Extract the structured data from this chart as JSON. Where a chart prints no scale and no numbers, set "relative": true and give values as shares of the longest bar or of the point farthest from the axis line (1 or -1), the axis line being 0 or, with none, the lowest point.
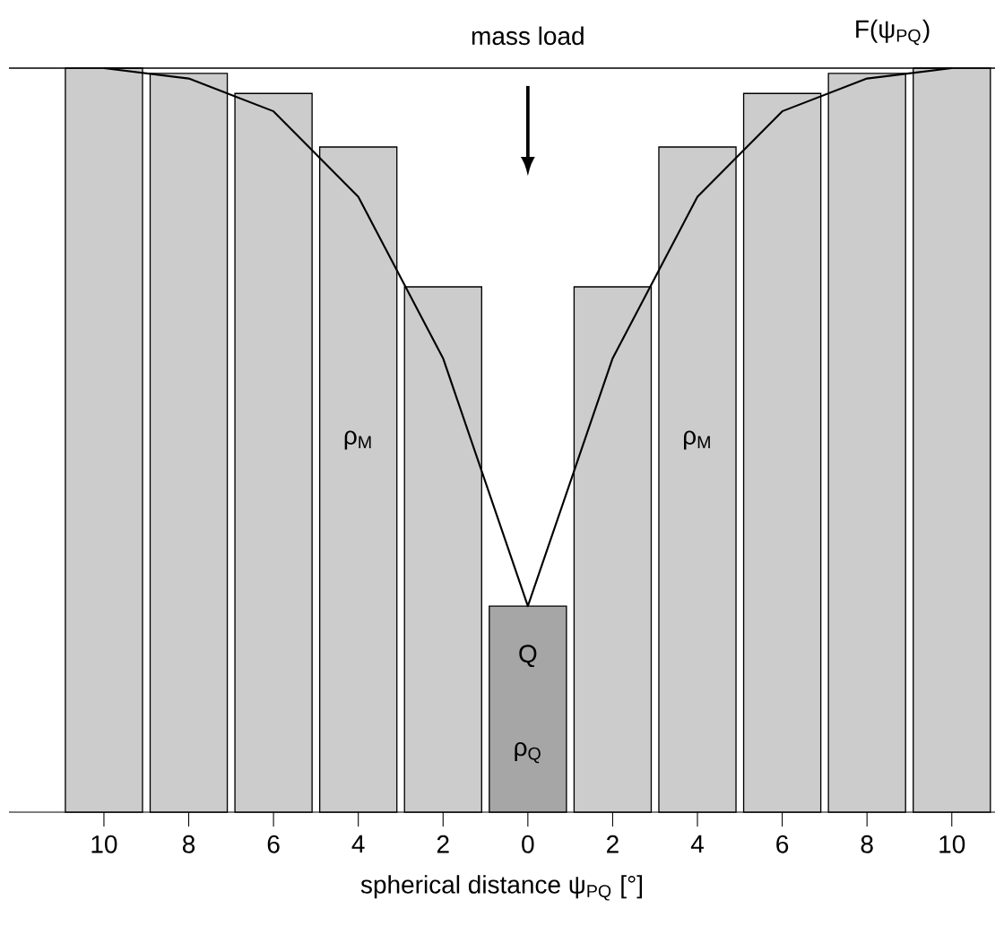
{
  "chart_data": {
    "type": "bar",
    "relative": true,
    "categories": [
      "10",
      "8",
      "6",
      "4",
      "2",
      "0",
      "2",
      "4",
      "6",
      "8",
      "10"
    ],
    "xlabel": "spherical distance ψ$_{PQ}$ [°]",
    "series": [
      {
        "values": [
          1,
          0.993,
          0.966,
          0.894,
          0.706,
          0.277,
          0.706,
          0.894,
          0.966,
          0.993,
          1
        ],
        "colors": [
          "#cccccc",
          "#cccccc",
          "#cccccc",
          "#cccccc",
          "#cccccc",
          "#a6a6a6",
          "#cccccc",
          "#cccccc",
          "#cccccc",
          "#cccccc",
          "#cccccc"
        ]
      },
      {
        "type": "line",
        "name": "F(ψ$_{PQ}$)",
        "color": "#000000",
        "values": [
          1,
          0.986,
          0.942,
          0.827,
          0.61,
          0.277,
          0.61,
          0.827,
          0.942,
          0.986,
          1
        ]
      }
    ],
    "ref_lines": [
      {
        "axis": "y",
        "value": 1
      }
    ],
    "annotations": [
      "mass load",
      "ρ$_{M}$",
      "ρ$_{M}$",
      "Q",
      "ρ$_{Q}$"
    ]
  }
}
